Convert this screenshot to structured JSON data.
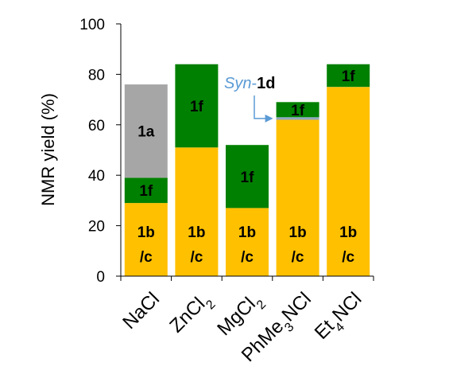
{
  "chart_data": {
    "type": "bar",
    "stacked": true,
    "ylabel": "NMR yield (%)",
    "ylim": [
      0,
      100
    ],
    "yticks": [
      0,
      20,
      40,
      60,
      80,
      100
    ],
    "grid": false,
    "categories": [
      {
        "base": "NaCl",
        "parts": [
          {
            "t": "NaCl"
          }
        ]
      },
      {
        "base": "ZnCl2",
        "parts": [
          {
            "t": "ZnCl"
          },
          {
            "t": "2",
            "sub": true
          }
        ]
      },
      {
        "base": "MgCl2",
        "parts": [
          {
            "t": "MgCl"
          },
          {
            "t": "2",
            "sub": true
          }
        ]
      },
      {
        "base": "PhMe3NCl",
        "parts": [
          {
            "t": "PhMe"
          },
          {
            "t": "3",
            "sub": true
          },
          {
            "t": "NCl"
          }
        ]
      },
      {
        "base": "Et4NCl",
        "parts": [
          {
            "t": "Et"
          },
          {
            "t": "4",
            "sub": true
          },
          {
            "t": "NCl"
          }
        ]
      }
    ],
    "series": [
      {
        "name": "1b/c",
        "color": "#FFC000",
        "values": [
          29,
          51,
          27,
          62,
          75
        ]
      },
      {
        "name": "Syn-1d",
        "color": "#8EA9C1",
        "values": [
          0,
          0,
          0,
          1,
          0
        ]
      },
      {
        "name": "1f",
        "color": "#008000",
        "values": [
          10,
          33,
          25,
          6,
          9
        ]
      },
      {
        "name": "1a",
        "color": "#A6A6A6",
        "values": [
          37,
          0,
          0,
          0,
          0
        ]
      }
    ],
    "segment_labels": [
      {
        "series": "1b/c",
        "lines": [
          "1b",
          "/c"
        ]
      },
      {
        "series": "1f",
        "lines": [
          "1f"
        ]
      },
      {
        "series": "1a",
        "lines": [
          "1a"
        ]
      }
    ],
    "annotation": {
      "italic": "Syn",
      "rest": "-1d",
      "color": "#5B9BD5",
      "target_category": "PhMe3NCl"
    }
  }
}
